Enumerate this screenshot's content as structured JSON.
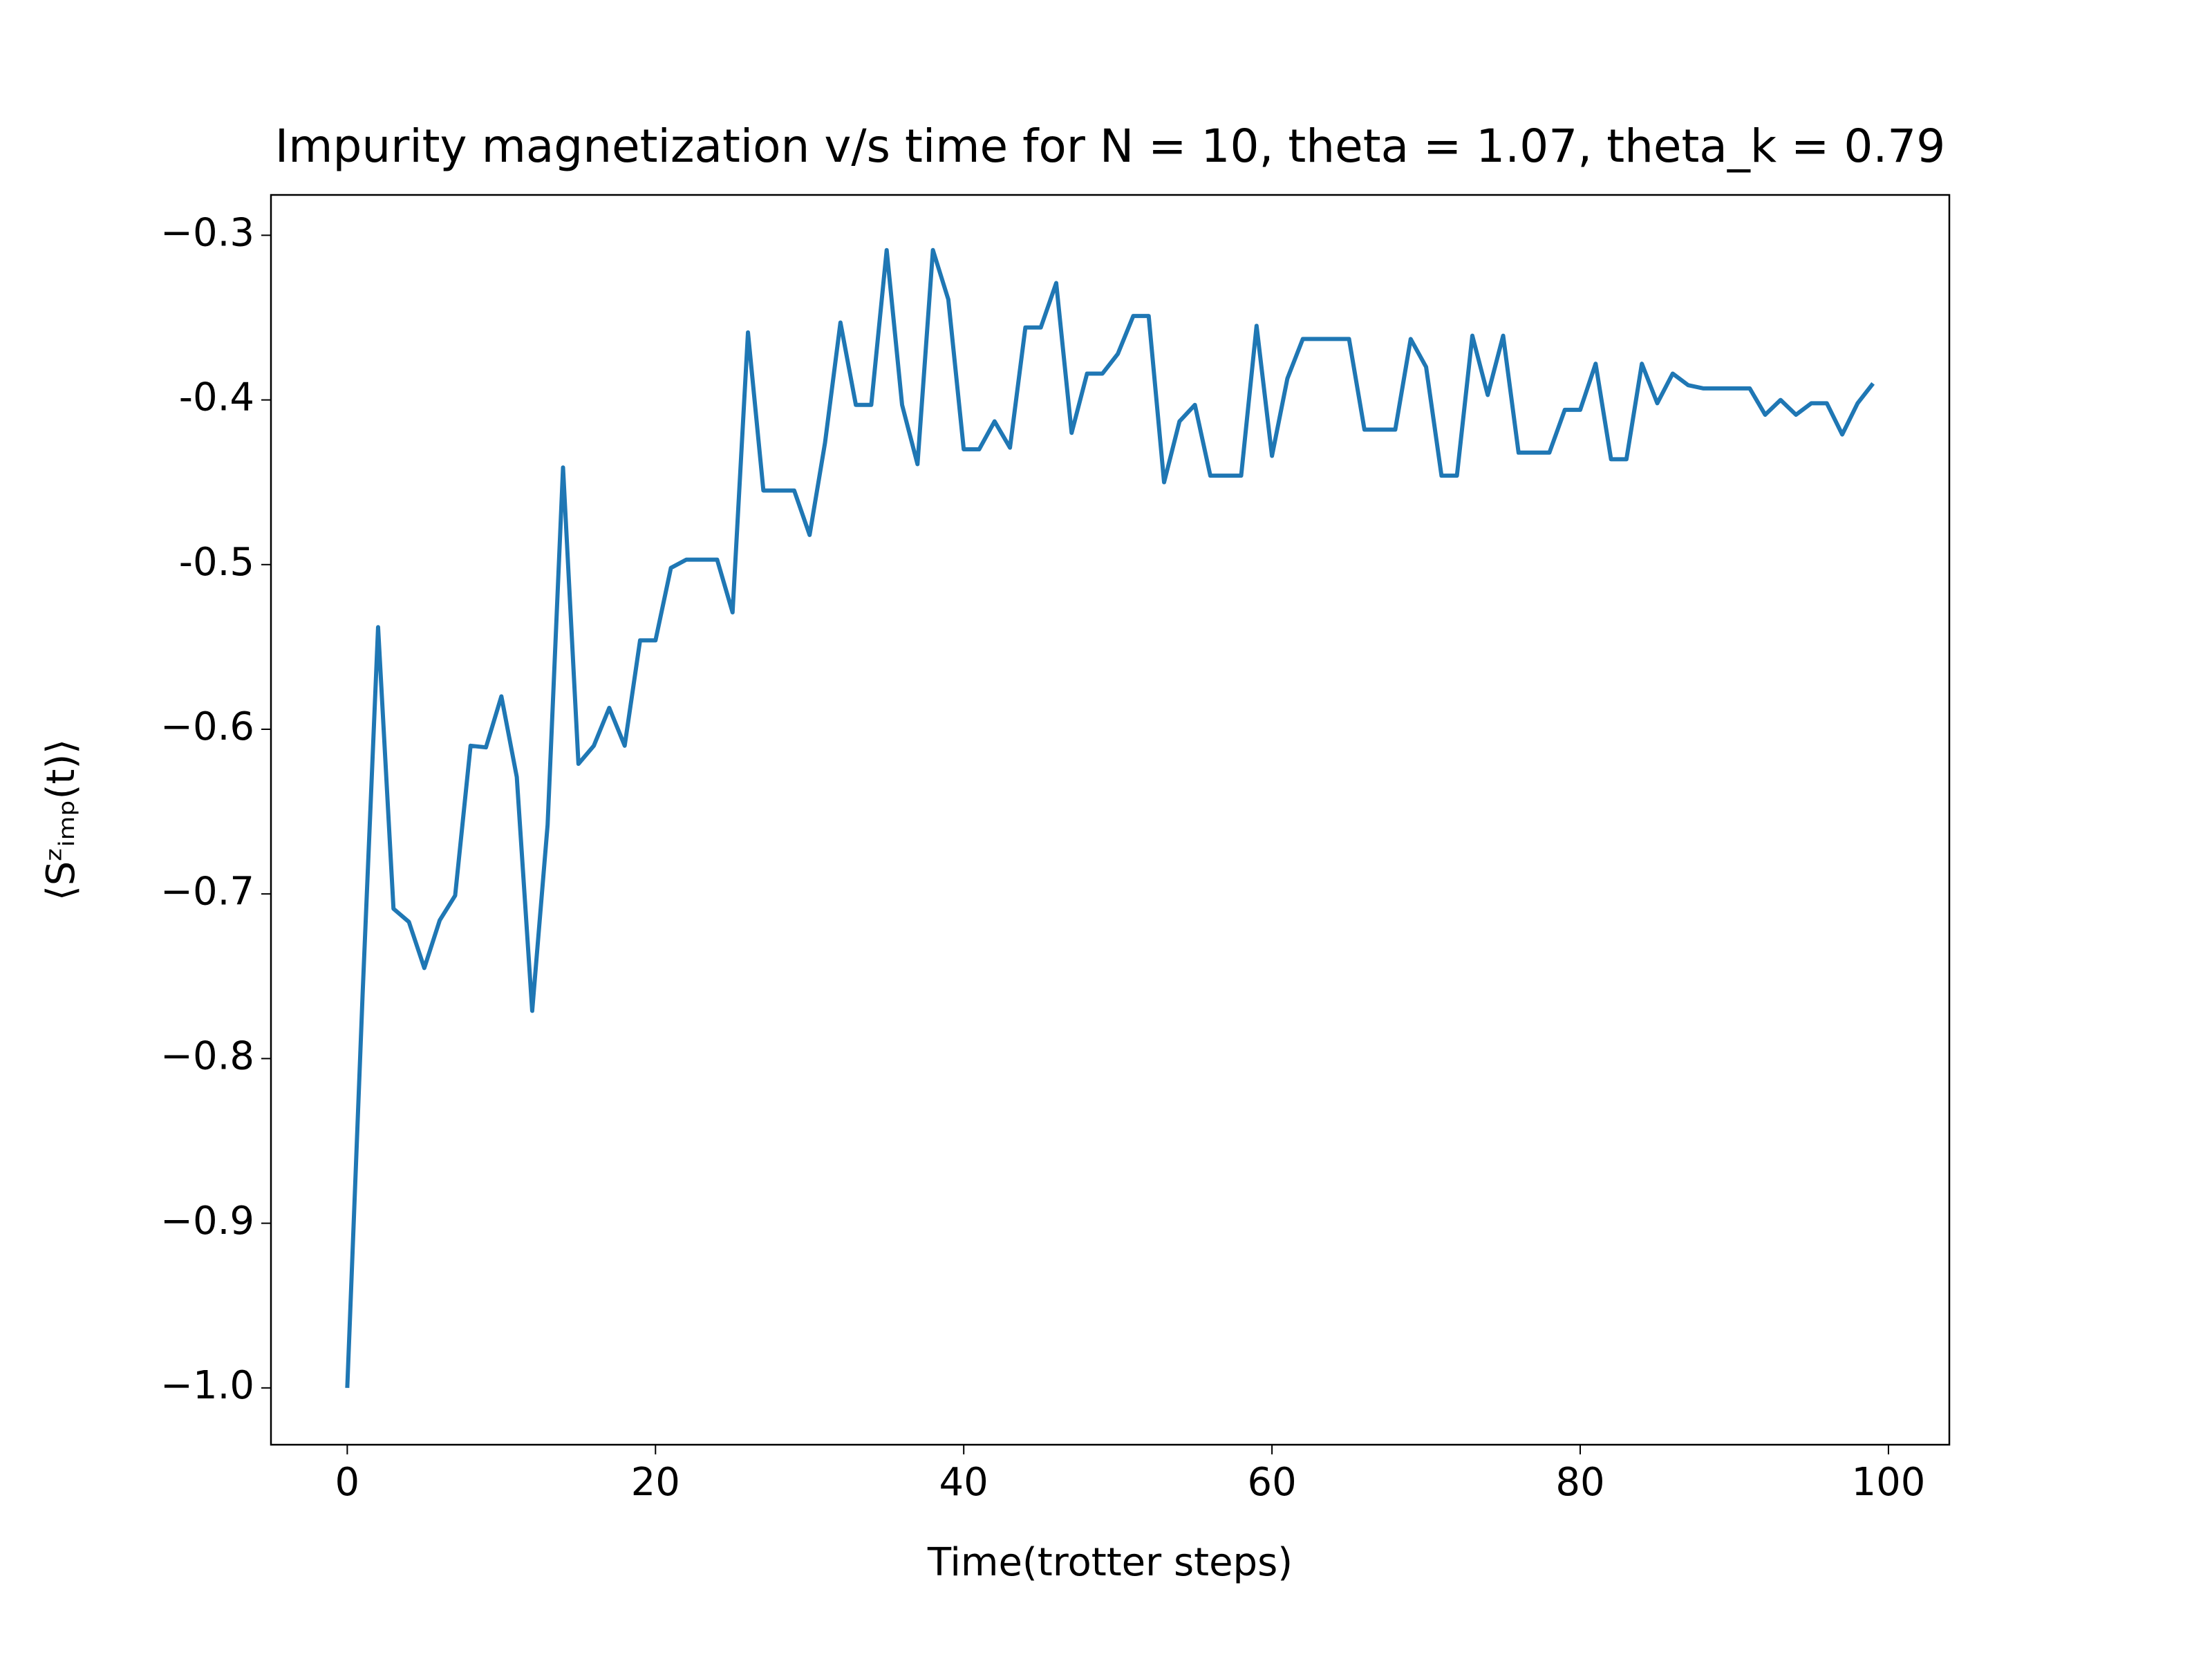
{
  "chart_data": {
    "type": "line",
    "title": "Impurity magnetization v/s time for N = 10, theta = 1.07, theta_k = 0.79",
    "x_label": "Time(trotter steps)",
    "y_label": "⟨Sᶻᵢₘₚ(t)⟩",
    "x": [
      0,
      1,
      2,
      3,
      4,
      5,
      6,
      7,
      8,
      9,
      10,
      11,
      12,
      13,
      14,
      15,
      16,
      17,
      18,
      19,
      20,
      21,
      22,
      23,
      24,
      25,
      26,
      27,
      28,
      29,
      30,
      31,
      32,
      33,
      34,
      35,
      36,
      37,
      38,
      39,
      40,
      41,
      42,
      43,
      44,
      45,
      46,
      47,
      48,
      49,
      50,
      51,
      52,
      53,
      54,
      55,
      56,
      57,
      58,
      59,
      60,
      61,
      62,
      63,
      64,
      65,
      66,
      67,
      68,
      69,
      70,
      71,
      72,
      73,
      74,
      75,
      76,
      77,
      78,
      79,
      80,
      81,
      82,
      83,
      84,
      85,
      86,
      87,
      88,
      89,
      90,
      91,
      92,
      93,
      94,
      95,
      96,
      97,
      98,
      99
    ],
    "series": [
      {
        "color": "#1f77b4",
        "values": [
          -1.0,
          -0.76,
          -0.538,
          -0.709,
          -0.717,
          -0.745,
          -0.716,
          -0.701,
          -0.61,
          -0.611,
          -0.58,
          -0.629,
          -0.771,
          -0.658,
          -0.441,
          -0.621,
          -0.61,
          -0.587,
          -0.61,
          -0.546,
          -0.546,
          -0.502,
          -0.497,
          -0.497,
          -0.497,
          -0.529,
          -0.359,
          -0.455,
          -0.455,
          -0.455,
          -0.482,
          -0.426,
          -0.353,
          -0.403,
          -0.403,
          -0.309,
          -0.403,
          -0.439,
          -0.309,
          -0.339,
          -0.43,
          -0.43,
          -0.413,
          -0.429,
          -0.356,
          -0.356,
          -0.329,
          -0.42,
          -0.384,
          -0.384,
          -0.372,
          -0.349,
          -0.349,
          -0.45,
          -0.413,
          -0.403,
          -0.446,
          -0.446,
          -0.446,
          -0.355,
          -0.434,
          -0.387,
          -0.363,
          -0.363,
          -0.363,
          -0.363,
          -0.418,
          -0.418,
          -0.418,
          -0.363,
          -0.38,
          -0.446,
          -0.446,
          -0.361,
          -0.397,
          -0.361,
          -0.432,
          -0.432,
          -0.432,
          -0.406,
          -0.406,
          -0.378,
          -0.436,
          -0.436,
          -0.378,
          -0.402,
          -0.384,
          -0.391,
          -0.393,
          -0.393,
          -0.393,
          -0.393,
          -0.409,
          -0.4,
          -0.409,
          -0.402,
          -0.402,
          -0.421,
          -0.402,
          -0.39
        ]
      }
    ],
    "xlim": [
      -4.95,
      103.95
    ],
    "xticks": [
      0,
      20,
      40,
      60,
      80,
      100
    ],
    "ylim": [
      -1.0345,
      -0.2755
    ],
    "yticks": [
      {
        "value": -1.0,
        "label": "−1.0"
      },
      {
        "value": -0.9,
        "label": "−0.9"
      },
      {
        "value": -0.8,
        "label": "−0.8"
      },
      {
        "value": -0.7,
        "label": "−0.7"
      },
      {
        "value": -0.6,
        "label": "−0.6"
      },
      -0.5,
      -0.4,
      {
        "value": -0.3,
        "label": "−0.3"
      }
    ]
  }
}
